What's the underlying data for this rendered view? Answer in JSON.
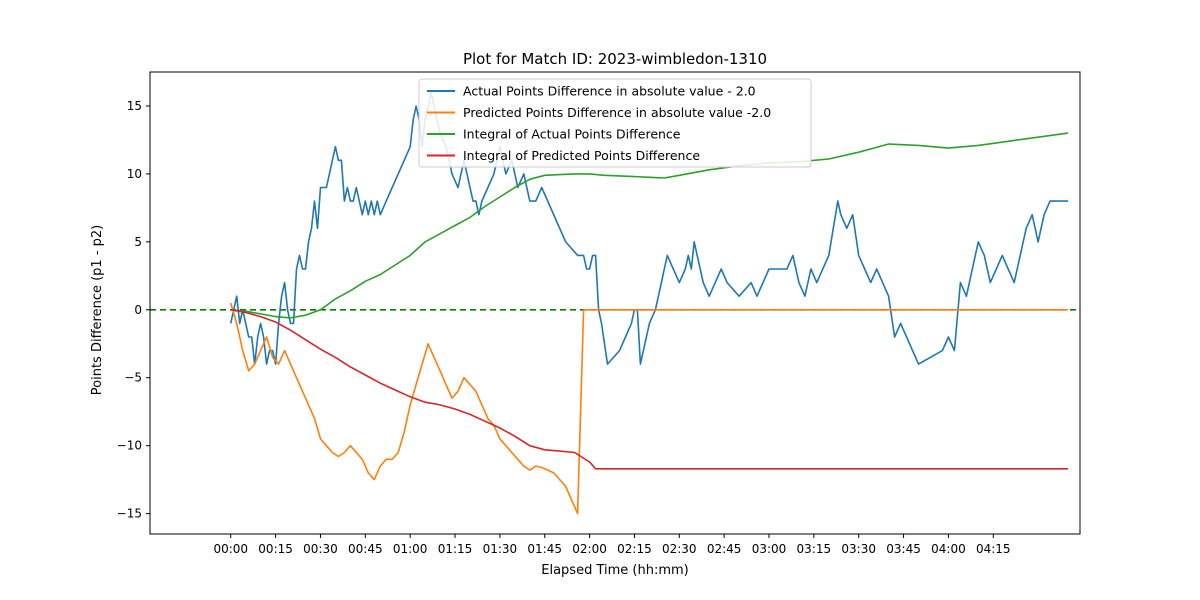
{
  "chart_data": {
    "type": "line",
    "title": "Plot for Match ID: 2023-wimbledon-1310",
    "xlabel": "Elapsed Time (hh:mm)",
    "ylabel": "Points Difference (p1 - p2)",
    "xlim_minutes": [
      -27,
      284
    ],
    "ylim": [
      -16.5,
      17.5
    ],
    "x_ticks": [
      "00:00",
      "00:15",
      "00:30",
      "00:45",
      "01:00",
      "01:15",
      "01:30",
      "01:45",
      "02:00",
      "02:15",
      "02:30",
      "02:45",
      "03:00",
      "03:15",
      "03:30",
      "03:45",
      "04:00",
      "04:15"
    ],
    "y_ticks": [
      -15,
      -10,
      -5,
      0,
      5,
      10,
      15
    ],
    "legend_position": "upper-center",
    "grid": false,
    "reference_line": {
      "y": 0,
      "color": "#008000",
      "style": "dashed"
    },
    "series": [
      {
        "name": "Actual Points Difference in absolute value - 2.0",
        "color": "#1f77b4",
        "x_minutes": [
          0,
          1,
          2,
          3,
          4,
          5,
          6,
          7,
          8,
          9,
          10,
          11,
          12,
          13,
          14,
          15,
          16,
          17,
          18,
          19,
          20,
          21,
          22,
          23,
          24,
          25,
          26,
          27,
          28,
          29,
          30,
          31,
          32,
          33,
          34,
          35,
          36,
          37,
          38,
          39,
          40,
          41,
          42,
          43,
          44,
          45,
          46,
          47,
          48,
          49,
          50,
          52,
          54,
          56,
          58,
          60,
          61,
          62,
          63,
          64,
          65,
          66,
          67,
          68,
          70,
          72,
          74,
          76,
          77,
          78,
          79,
          80,
          81,
          82,
          83,
          84,
          86,
          88,
          90,
          92,
          94,
          96,
          98,
          100,
          102,
          104,
          112,
          116,
          118,
          119,
          120,
          121,
          122,
          123,
          124,
          126,
          130,
          132,
          134,
          135,
          136,
          137,
          138,
          140,
          142,
          143,
          144,
          145,
          146,
          148,
          150,
          152,
          153,
          154,
          155,
          156,
          158,
          160,
          162,
          164,
          166,
          170,
          174,
          176,
          178,
          180,
          182,
          186,
          188,
          190,
          192,
          194,
          196,
          200,
          203,
          204,
          206,
          208,
          210,
          212,
          214,
          216,
          218,
          220,
          222,
          224,
          230,
          238,
          240,
          242,
          244,
          246,
          248,
          250,
          252,
          254,
          256,
          258,
          260,
          262,
          264,
          266,
          268,
          270,
          272,
          274,
          276,
          278,
          279,
          280
        ],
        "y": [
          -1,
          0,
          1,
          -1,
          0,
          -1,
          -2,
          -2,
          -4,
          -2,
          -1,
          -2,
          -4,
          -3,
          -3,
          -4,
          -1,
          1,
          2,
          0,
          -1,
          -1,
          3,
          4,
          3,
          3,
          5,
          6,
          8,
          6,
          9,
          9,
          9,
          10,
          11,
          12,
          11,
          11,
          8,
          9,
          8,
          8,
          9,
          8,
          7,
          8,
          7,
          8,
          7,
          8,
          7,
          8,
          9,
          10,
          11,
          12,
          14,
          15,
          14,
          12,
          14,
          15,
          16,
          15,
          13,
          12,
          10,
          9,
          10,
          11,
          10,
          9,
          8,
          8,
          7,
          8,
          9,
          10,
          12,
          10,
          11,
          9,
          10,
          8,
          8,
          9,
          5,
          4,
          4,
          3,
          3,
          4,
          4,
          0,
          -1,
          -4,
          -3,
          -2,
          -1,
          0,
          0,
          -4,
          -3,
          -1,
          0,
          1,
          2,
          3,
          4,
          3,
          2,
          3,
          4,
          3,
          5,
          4,
          2,
          1,
          2,
          3,
          2,
          1,
          2,
          1,
          2,
          3,
          3,
          3,
          4,
          2,
          1,
          3,
          2,
          4,
          8,
          7,
          6,
          7,
          4,
          3,
          2,
          3,
          2,
          1,
          -2,
          -1,
          -4,
          -3,
          -2,
          -3,
          2,
          1,
          3,
          5,
          4,
          2,
          3,
          4,
          3,
          2,
          4,
          6,
          7,
          5,
          7,
          8,
          8,
          8,
          8,
          8
        ]
      },
      {
        "name": "Predicted Points Difference in absolute value -2.0",
        "color": "#ff7f0e",
        "x_minutes": [
          0,
          2,
          4,
          6,
          8,
          10,
          12,
          14,
          16,
          18,
          20,
          22,
          24,
          26,
          28,
          30,
          32,
          34,
          36,
          38,
          40,
          42,
          44,
          46,
          48,
          50,
          52,
          54,
          56,
          58,
          60,
          62,
          64,
          66,
          68,
          70,
          72,
          74,
          76,
          78,
          80,
          82,
          84,
          86,
          88,
          90,
          92,
          94,
          96,
          98,
          100,
          102,
          104,
          106,
          108,
          110,
          112,
          114,
          116,
          118,
          120,
          122,
          123,
          124,
          126,
          130,
          134,
          138,
          140,
          142,
          150,
          160,
          170,
          180,
          190,
          200,
          210,
          220,
          230,
          240,
          250,
          260,
          270,
          280
        ],
        "y": [
          0.5,
          -1,
          -3,
          -4.5,
          -4,
          -3,
          -2,
          -3.5,
          -4,
          -3,
          -4,
          -5,
          -6,
          -7,
          -8,
          -9.5,
          -10,
          -10.5,
          -10.8,
          -10.5,
          -10,
          -10.5,
          -11,
          -12,
          -12.5,
          -11.5,
          -11,
          -11,
          -10.5,
          -9,
          -7,
          -5.5,
          -4,
          -2.5,
          -3.5,
          -4.5,
          -5.5,
          -6.5,
          -6,
          -5,
          -5.5,
          -6,
          -7,
          -8,
          -8.5,
          -9.5,
          -10,
          -10.5,
          -11,
          -11.5,
          -11.8,
          -11.5,
          -11.6,
          -11.8,
          -12,
          -12.5,
          -13,
          -14,
          -15,
          0,
          0,
          0,
          0,
          0,
          0,
          0,
          0,
          0,
          0,
          0,
          0,
          0,
          0,
          0,
          0,
          0,
          0,
          0,
          0,
          0,
          0,
          0,
          0,
          0
        ]
      },
      {
        "name": "Integral of Actual Points Difference",
        "color": "#2ca02c",
        "x_minutes": [
          0,
          5,
          10,
          15,
          20,
          25,
          30,
          35,
          40,
          45,
          50,
          55,
          60,
          65,
          70,
          75,
          80,
          85,
          90,
          95,
          100,
          105,
          110,
          115,
          120,
          125,
          130,
          135,
          140,
          145,
          150,
          160,
          170,
          180,
          190,
          200,
          210,
          215,
          220,
          230,
          240,
          250,
          260,
          270,
          280
        ],
        "y": [
          0,
          -0.1,
          -0.3,
          -0.5,
          -0.6,
          -0.4,
          0,
          0.8,
          1.4,
          2.1,
          2.6,
          3.3,
          4.0,
          5.0,
          5.6,
          6.2,
          6.8,
          7.6,
          8.3,
          9.0,
          9.6,
          9.9,
          9.95,
          10.0,
          10.0,
          9.9,
          9.85,
          9.8,
          9.75,
          9.7,
          9.9,
          10.3,
          10.6,
          10.8,
          10.9,
          11.1,
          11.6,
          11.9,
          12.2,
          12.1,
          11.9,
          12.1,
          12.4,
          12.7,
          13.0
        ]
      },
      {
        "name": "Integral of Predicted Points Difference",
        "color": "#d62728",
        "x_minutes": [
          0,
          5,
          10,
          15,
          20,
          25,
          30,
          35,
          40,
          45,
          50,
          55,
          60,
          65,
          70,
          75,
          80,
          85,
          90,
          95,
          100,
          105,
          110,
          115,
          120,
          122,
          130,
          150,
          180,
          210,
          240,
          270,
          280
        ],
        "y": [
          0,
          -0.2,
          -0.5,
          -0.9,
          -1.5,
          -2.2,
          -2.9,
          -3.5,
          -4.2,
          -4.8,
          -5.4,
          -5.9,
          -6.4,
          -6.8,
          -7.0,
          -7.3,
          -7.7,
          -8.2,
          -8.7,
          -9.3,
          -10.0,
          -10.3,
          -10.4,
          -10.5,
          -11.2,
          -11.7,
          -11.7,
          -11.7,
          -11.7,
          -11.7,
          -11.7,
          -11.7,
          -11.7
        ]
      }
    ]
  }
}
